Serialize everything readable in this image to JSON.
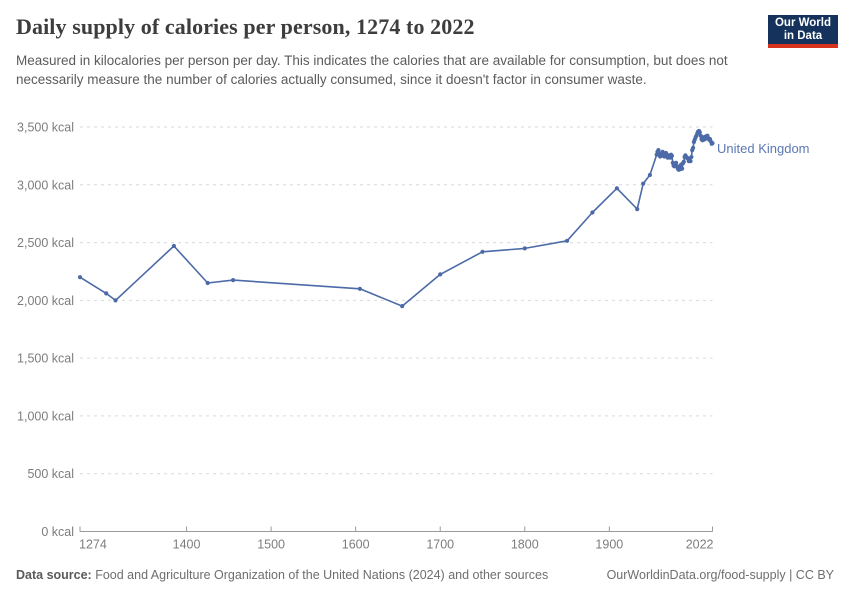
{
  "header": {
    "title": "Daily supply of calories per person, 1274 to 2022",
    "subtitle": "Measured in kilocalories per person per day. This indicates the calories that are available for consumption, but does not necessarily measure the number of calories actually consumed, since it doesn't factor in consumer waste.",
    "logo": {
      "line1": "Our World",
      "line2": "in Data",
      "bg_color": "#14325c",
      "accent_color": "#d7321e"
    }
  },
  "chart_data": {
    "type": "line",
    "title": "Daily supply of calories per person, 1274 to 2022",
    "xlabel": "",
    "ylabel": "",
    "x_axis": {
      "min": 1274,
      "max": 2022,
      "ticks": [
        1274,
        1400,
        1500,
        1600,
        1700,
        1800,
        1900,
        2022
      ]
    },
    "y_axis": {
      "min": 0,
      "max": 3500,
      "ticks": [
        0,
        500,
        1000,
        1500,
        2000,
        2500,
        3000,
        3500
      ],
      "unit": " kcal"
    },
    "grid": true,
    "grid_color": "#d9d9d9",
    "axis_color": "#9b9b9b",
    "tick_label_color": "#7d7d7d",
    "legend_position": "end-of-line-label",
    "series": [
      {
        "name": "United Kingdom",
        "color": "#4c6aa7",
        "label_color": "#5b78b4",
        "points": [
          [
            1274,
            2200
          ],
          [
            1305,
            2060
          ],
          [
            1316,
            2000
          ],
          [
            1385,
            2470
          ],
          [
            1425,
            2150
          ],
          [
            1455,
            2175
          ],
          [
            1605,
            2100
          ],
          [
            1655,
            1950
          ],
          [
            1700,
            2225
          ],
          [
            1750,
            2420
          ],
          [
            1800,
            2450
          ],
          [
            1850,
            2515
          ],
          [
            1880,
            2760
          ],
          [
            1909,
            2970
          ],
          [
            1933,
            2790
          ],
          [
            1940,
            3010
          ],
          [
            1948,
            3085
          ],
          [
            1956,
            3260
          ],
          [
            1957,
            3285
          ],
          [
            1958,
            3300
          ],
          [
            1959,
            3270
          ],
          [
            1960,
            3245
          ],
          [
            1961,
            3250
          ],
          [
            1962,
            3275
          ],
          [
            1963,
            3285
          ],
          [
            1964,
            3250
          ],
          [
            1965,
            3245
          ],
          [
            1966,
            3270
          ],
          [
            1967,
            3275
          ],
          [
            1968,
            3260
          ],
          [
            1969,
            3235
          ],
          [
            1970,
            3250
          ],
          [
            1971,
            3255
          ],
          [
            1972,
            3235
          ],
          [
            1973,
            3260
          ],
          [
            1974,
            3250
          ],
          [
            1975,
            3190
          ],
          [
            1976,
            3165
          ],
          [
            1977,
            3160
          ],
          [
            1978,
            3175
          ],
          [
            1979,
            3190
          ],
          [
            1980,
            3160
          ],
          [
            1981,
            3140
          ],
          [
            1982,
            3130
          ],
          [
            1983,
            3160
          ],
          [
            1984,
            3135
          ],
          [
            1985,
            3175
          ],
          [
            1986,
            3140
          ],
          [
            1987,
            3185
          ],
          [
            1988,
            3200
          ],
          [
            1989,
            3240
          ],
          [
            1990,
            3255
          ],
          [
            1991,
            3240
          ],
          [
            1992,
            3230
          ],
          [
            1993,
            3230
          ],
          [
            1994,
            3205
          ],
          [
            1995,
            3210
          ],
          [
            1996,
            3205
          ],
          [
            1997,
            3240
          ],
          [
            1998,
            3300
          ],
          [
            1999,
            3320
          ],
          [
            2000,
            3370
          ],
          [
            2001,
            3390
          ],
          [
            2002,
            3410
          ],
          [
            2003,
            3425
          ],
          [
            2004,
            3445
          ],
          [
            2005,
            3460
          ],
          [
            2006,
            3465
          ],
          [
            2007,
            3455
          ],
          [
            2008,
            3425
          ],
          [
            2009,
            3395
          ],
          [
            2010,
            3385
          ],
          [
            2011,
            3410
          ],
          [
            2012,
            3390
          ],
          [
            2013,
            3415
          ],
          [
            2014,
            3400
          ],
          [
            2015,
            3420
          ],
          [
            2016,
            3425
          ],
          [
            2017,
            3405
          ],
          [
            2018,
            3390
          ],
          [
            2019,
            3395
          ],
          [
            2020,
            3375
          ],
          [
            2021,
            3355
          ],
          [
            2022,
            3360
          ]
        ]
      }
    ]
  },
  "footer": {
    "source_label": "Data source:",
    "source_text": " Food and Agriculture Organization of the United Nations (2024) and other sources",
    "license_text": "OurWorldinData.org/food-supply | CC BY"
  }
}
